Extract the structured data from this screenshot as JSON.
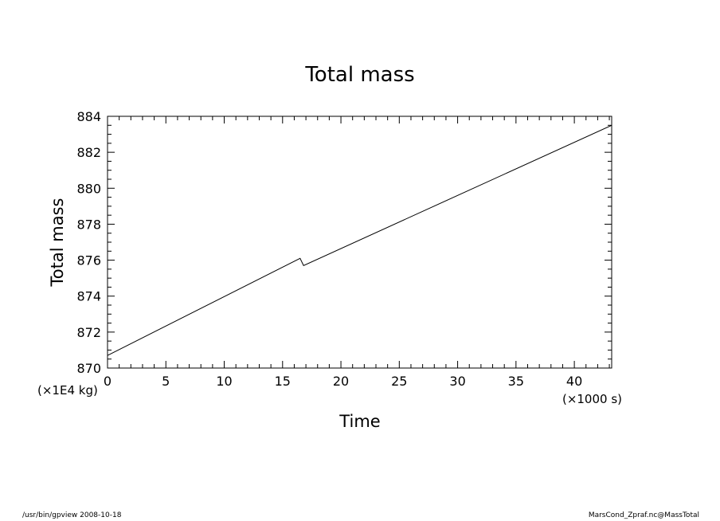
{
  "chart_data": {
    "type": "line",
    "title": "Total mass",
    "xlabel": "Time",
    "ylabel": "Total mass",
    "x_unit": "(×1000 s)",
    "y_unit": "(×1E4 kg)",
    "xlim": [
      0,
      43.2
    ],
    "ylim": [
      870,
      884
    ],
    "x_ticks": [
      0,
      5,
      10,
      15,
      20,
      25,
      30,
      35,
      40
    ],
    "y_ticks": [
      870,
      872,
      874,
      876,
      878,
      880,
      882,
      884
    ],
    "grid": false,
    "series": [
      {
        "x": [
          0,
          16.5,
          16.8,
          43.2
        ],
        "y": [
          870.7,
          876.1,
          875.7,
          883.5
        ]
      }
    ]
  },
  "footer": {
    "left": "/usr/bin/gpview   2008-10-18",
    "right": "MarsCond_Zpraf.nc@MassTotal"
  }
}
